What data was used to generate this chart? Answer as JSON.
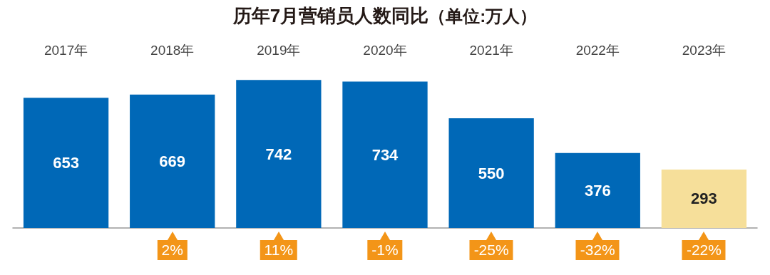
{
  "chart_data": {
    "type": "bar",
    "title": "历年7月营销员人数同比",
    "subtitle": "（单位:万人）",
    "categories": [
      "2017年",
      "2018年",
      "2019年",
      "2020年",
      "2021年",
      "2022年",
      "2023年"
    ],
    "values": [
      653,
      669,
      742,
      734,
      550,
      376,
      293
    ],
    "colors": [
      "#0068b7",
      "#0068b7",
      "#0068b7",
      "#0068b7",
      "#0068b7",
      "#0068b7",
      "#f6df9a"
    ],
    "data_labels": true,
    "annotations": [
      "2%",
      "11%",
      "-1%",
      "-25%",
      "-32%",
      "-22%"
    ]
  }
}
